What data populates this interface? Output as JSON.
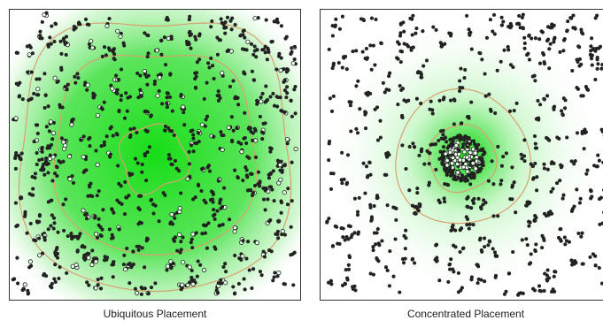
{
  "panels": {
    "left": {
      "caption": "Ubiquitous Placement",
      "field": "uniform",
      "gradient_color": "#18e018",
      "contour_color": "#d9a070",
      "node_color": "#222222"
    },
    "right": {
      "caption": "Concentrated Placement",
      "field": "centered",
      "gradient_color": "#18e018",
      "contour_color": "#d9a070",
      "node_color": "#222222"
    }
  }
}
